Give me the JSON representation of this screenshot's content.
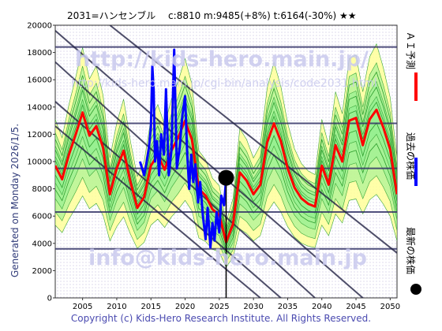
{
  "title": "2031=ハンセンブル　 c:8810  m:9485(+8%)  t:6164(-30%)  ★★",
  "generated": "Generated on Monday 2026/1/5.",
  "copyright": "Copyright (c) Kids-Hero Research Institute. All Rights Reserved.",
  "watermarks": {
    "top": "http://kids-hero.main.jp/",
    "mid": "http://kids-hero.main.jp/cgi-bin/analysis/code2031.html",
    "bottom": "info@kids-hero.main.jp"
  },
  "legend": {
    "ai_forecast": "ＡＩ予測",
    "past_price": "過去の株価",
    "latest_price": "最新の株価"
  },
  "colors": {
    "ai_forecast": "#ff0000",
    "past_price": "#0000ff",
    "latest_price": "#000000",
    "band_green": "#90ee90",
    "band_yellow": "#ffff99",
    "hline": "#333366",
    "trendline": "#222244"
  },
  "chart_data": {
    "type": "line",
    "xlim": [
      2001,
      2051
    ],
    "ylim": [
      0,
      20000
    ],
    "x_ticks": [
      2005,
      2010,
      2015,
      2020,
      2025,
      2030,
      2035,
      2040,
      2045,
      2050
    ],
    "y_ticks": [
      0,
      2000,
      4000,
      6000,
      8000,
      10000,
      12000,
      14000,
      16000,
      18000,
      20000
    ],
    "horizontal_lines": [
      3600,
      6300,
      9500,
      12800,
      18400
    ],
    "trend_lines": [
      {
        "x": [
          2001,
          2046
        ],
        "y": [
          19600,
          0
        ]
      },
      {
        "x": [
          2001,
          2039
        ],
        "y": [
          17300,
          0
        ]
      },
      {
        "x": [
          2001,
          2034
        ],
        "y": [
          14400,
          0
        ]
      },
      {
        "x": [
          2001,
          2031
        ],
        "y": [
          12600,
          0
        ]
      },
      {
        "x": [
          2009,
          2051
        ],
        "y": [
          20000,
          3300
        ]
      }
    ],
    "current_marker": {
      "x": 2026.0,
      "y": 8810
    },
    "series": [
      {
        "name": "ＡＩ予測",
        "color": "#ff0000",
        "x": [
          2001,
          2002,
          2003,
          2004,
          2005,
          2006,
          2007,
          2008,
          2009,
          2010,
          2011,
          2012,
          2013,
          2014,
          2015,
          2016,
          2017,
          2018,
          2019,
          2020,
          2021,
          2022,
          2023,
          2024,
          2025,
          2026,
          2027,
          2028,
          2029,
          2030,
          2031,
          2032,
          2033,
          2034,
          2035,
          2036,
          2037,
          2038,
          2039,
          2040,
          2041,
          2042,
          2043,
          2044,
          2045,
          2046,
          2047,
          2048,
          2049,
          2050,
          2051
        ],
        "y": [
          9700,
          8700,
          10500,
          12000,
          13600,
          11900,
          12600,
          11000,
          7600,
          9500,
          10800,
          8500,
          6600,
          7400,
          9700,
          10500,
          9400,
          10800,
          11800,
          13000,
          11600,
          8000,
          7500,
          6500,
          6100,
          4100,
          5400,
          9200,
          8600,
          7600,
          8300,
          11400,
          12800,
          11500,
          9500,
          8100,
          7300,
          6900,
          6700,
          9700,
          8300,
          11200,
          10000,
          13000,
          13200,
          11200,
          13100,
          13800,
          12500,
          10900,
          7600
        ]
      },
      {
        "name": "過去の株価",
        "color": "#0000ff",
        "x": [
          2013.4,
          2014.0,
          2014.3,
          2014.7,
          2015.0,
          2015.2,
          2015.4,
          2015.6,
          2015.9,
          2016.2,
          2016.5,
          2016.9,
          2017.2,
          2017.6,
          2018.0,
          2018.4,
          2018.8,
          2019.2,
          2019.6,
          2020.0,
          2020.3,
          2020.6,
          2020.9,
          2021.2,
          2021.5,
          2021.9,
          2022.2,
          2022.6,
          2023.0,
          2023.3,
          2023.7,
          2024.0,
          2024.3,
          2024.6,
          2025.0,
          2025.3,
          2025.7,
          2026.0
        ],
        "y": [
          10000,
          9000,
          9800,
          11000,
          12500,
          17000,
          15200,
          10000,
          11500,
          9000,
          12000,
          10500,
          15300,
          9000,
          10800,
          18200,
          9500,
          11000,
          13400,
          14800,
          10700,
          8000,
          10500,
          8500,
          9800,
          7000,
          8500,
          6000,
          4300,
          6600,
          3700,
          5500,
          4200,
          6300,
          4800,
          7500,
          6800,
          8800
        ]
      }
    ]
  }
}
